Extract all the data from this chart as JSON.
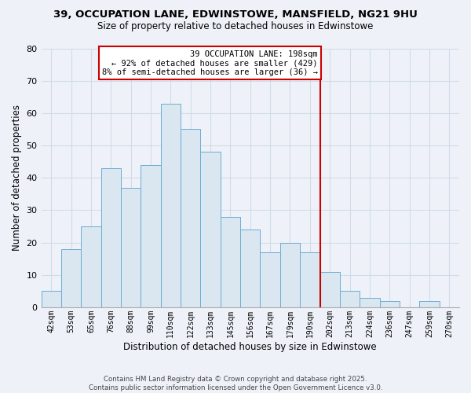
{
  "title_line1": "39, OCCUPATION LANE, EDWINSTOWE, MANSFIELD, NG21 9HU",
  "title_line2": "Size of property relative to detached houses in Edwinstowe",
  "xlabel": "Distribution of detached houses by size in Edwinstowe",
  "ylabel": "Number of detached properties",
  "bar_labels": [
    "42sqm",
    "53sqm",
    "65sqm",
    "76sqm",
    "88sqm",
    "99sqm",
    "110sqm",
    "122sqm",
    "133sqm",
    "145sqm",
    "156sqm",
    "167sqm",
    "179sqm",
    "190sqm",
    "202sqm",
    "213sqm",
    "224sqm",
    "236sqm",
    "247sqm",
    "259sqm",
    "270sqm"
  ],
  "bar_heights": [
    5,
    18,
    25,
    43,
    37,
    44,
    63,
    55,
    48,
    28,
    24,
    17,
    20,
    17,
    11,
    5,
    3,
    2,
    0,
    2,
    0
  ],
  "bar_color": "#dae6f0",
  "bar_edge_color": "#6aadd5",
  "vline_index": 14,
  "vline_color": "#cc0000",
  "annotation_title": "39 OCCUPATION LANE: 198sqm",
  "annotation_line1": "← 92% of detached houses are smaller (429)",
  "annotation_line2": "8% of semi-detached houses are larger (36) →",
  "annotation_box_color": "#ffffff",
  "annotation_box_edge": "#cc0000",
  "ylim": [
    0,
    80
  ],
  "yticks": [
    0,
    10,
    20,
    30,
    40,
    50,
    60,
    70,
    80
  ],
  "grid_color": "#d0dce8",
  "background_color": "#eef2f8",
  "footer_line1": "Contains HM Land Registry data © Crown copyright and database right 2025.",
  "footer_line2": "Contains public sector information licensed under the Open Government Licence v3.0."
}
